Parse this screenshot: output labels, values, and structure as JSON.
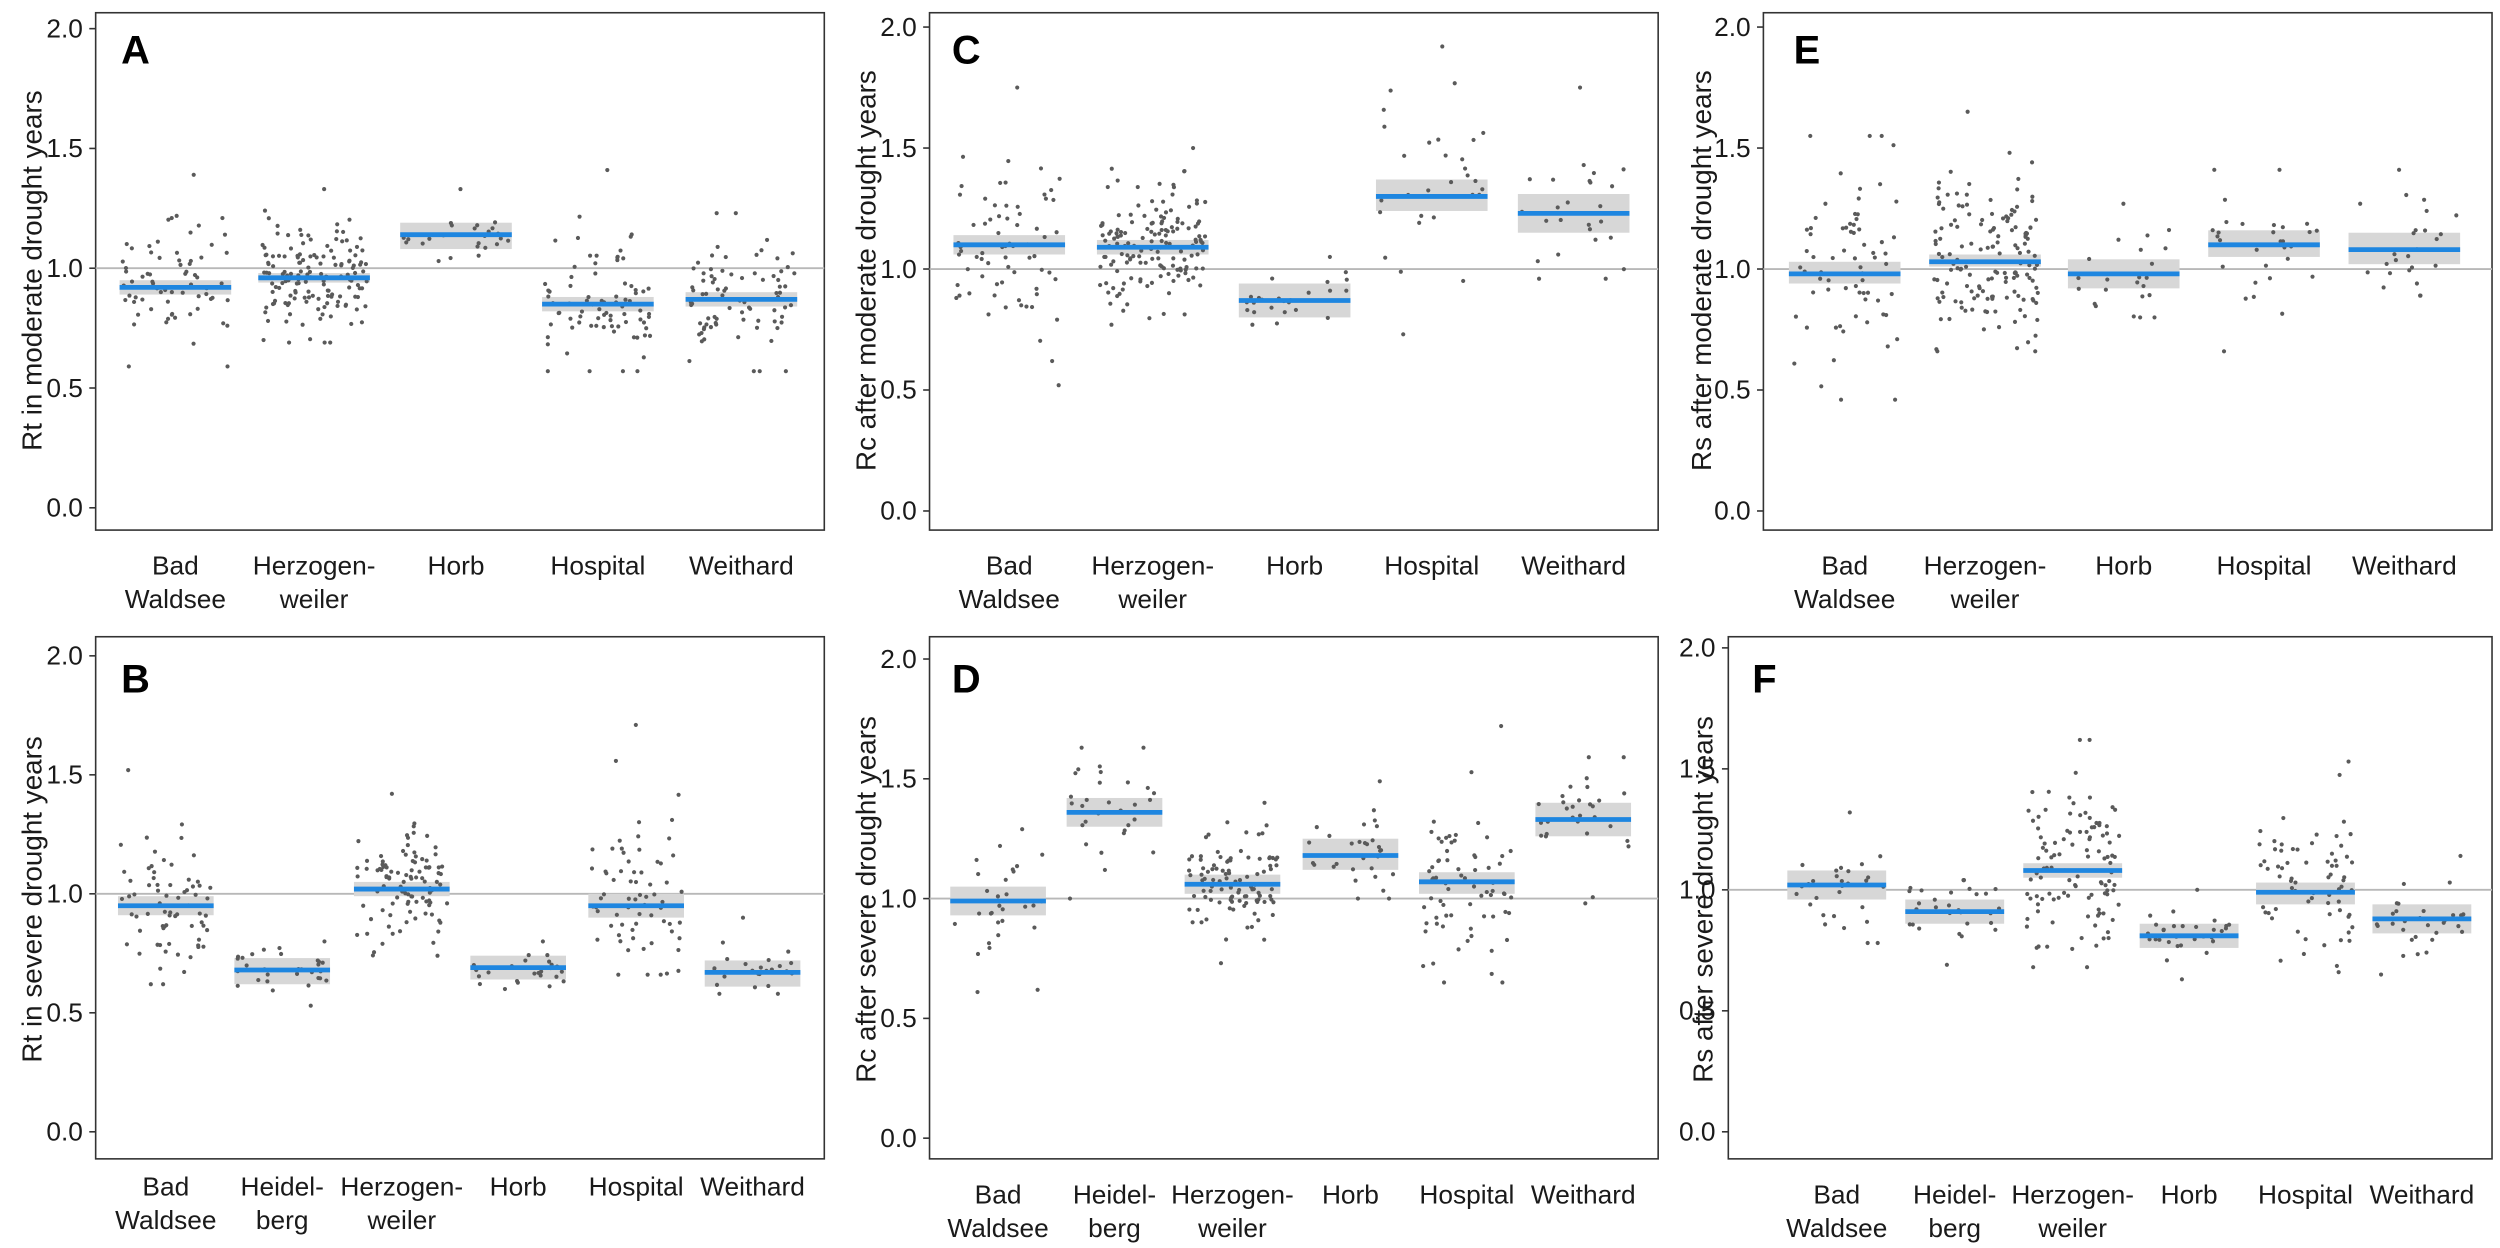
{
  "colors": {
    "mean_line": "#1e86e0",
    "ci_band": "#d7d7d7",
    "points": "#5a5a5a",
    "reference_line": "#b8b8b8",
    "frame": "#333333"
  },
  "chart_data": [
    {
      "panel": "A",
      "type": "scatter",
      "ylabel": "Rt in moderate drought years",
      "yticks": [
        "0.0",
        "0.5",
        "1.0",
        "1.5",
        "2.0"
      ],
      "ylim": [
        -0.09,
        2.07
      ],
      "reference_line": 1.0,
      "groups": [
        {
          "label_lines": [
            "Bad",
            "Waldsee"
          ],
          "mean": 0.92,
          "ci": [
            0.89,
            0.95
          ],
          "range": [
            0.59,
            1.39
          ],
          "n": 70
        },
        {
          "label_lines": [
            "Herzogen-",
            "weiler"
          ],
          "mean": 0.96,
          "ci": [
            0.94,
            0.98
          ],
          "range": [
            0.69,
            1.33
          ],
          "n": 150
        },
        {
          "label_lines": [
            "Horb"
          ],
          "mean": 1.14,
          "ci": [
            1.08,
            1.19
          ],
          "range": [
            1.03,
            1.33
          ],
          "n": 25
        },
        {
          "label_lines": [
            "Hospital"
          ],
          "mean": 0.85,
          "ci": [
            0.82,
            0.88
          ],
          "range": [
            0.57,
            1.41
          ],
          "n": 80
        },
        {
          "label_lines": [
            "Weithard"
          ],
          "mean": 0.87,
          "ci": [
            0.84,
            0.9
          ],
          "range": [
            0.57,
            1.23
          ],
          "n": 80
        }
      ]
    },
    {
      "panel": "B",
      "type": "scatter",
      "ylabel": "Rt in severe drought years",
      "yticks": [
        "0.0",
        "0.5",
        "1.0",
        "1.5",
        "2.0"
      ],
      "ylim": [
        -0.09,
        2.07
      ],
      "reference_line": 1.0,
      "groups": [
        {
          "label_lines": [
            "Bad",
            "Waldsee"
          ],
          "mean": 0.95,
          "ci": [
            0.91,
            0.99
          ],
          "range": [
            0.62,
            1.52
          ],
          "n": 70
        },
        {
          "label_lines": [
            "Heidel-",
            "berg"
          ],
          "mean": 0.68,
          "ci": [
            0.62,
            0.73
          ],
          "range": [
            0.53,
            0.8
          ],
          "n": 30
        },
        {
          "label_lines": [
            "Herzogen-",
            "weiler"
          ],
          "mean": 1.02,
          "ci": [
            0.99,
            1.05
          ],
          "range": [
            0.74,
            1.42
          ],
          "n": 100
        },
        {
          "label_lines": [
            "Horb"
          ],
          "mean": 0.69,
          "ci": [
            0.64,
            0.74
          ],
          "range": [
            0.6,
            0.8
          ],
          "n": 25
        },
        {
          "label_lines": [
            "Hospital"
          ],
          "mean": 0.95,
          "ci": [
            0.9,
            1.0
          ],
          "range": [
            0.66,
            1.71
          ],
          "n": 70
        },
        {
          "label_lines": [
            "Weithard"
          ],
          "mean": 0.67,
          "ci": [
            0.61,
            0.72
          ],
          "range": [
            0.58,
            0.9
          ],
          "n": 25
        }
      ]
    },
    {
      "panel": "C",
      "type": "scatter",
      "ylabel": "Rc after moderate  drought years",
      "yticks": [
        "0.0",
        "0.5",
        "1.0",
        "1.5",
        "2.0"
      ],
      "ylim": [
        -0.09,
        2.07
      ],
      "reference_line": 1.0,
      "groups": [
        {
          "label_lines": [
            "Bad",
            "Waldsee"
          ],
          "mean": 1.1,
          "ci": [
            1.06,
            1.14
          ],
          "range": [
            0.52,
            1.75
          ],
          "n": 70
        },
        {
          "label_lines": [
            "Herzogen-",
            "weiler"
          ],
          "mean": 1.09,
          "ci": [
            1.06,
            1.12
          ],
          "range": [
            0.77,
            1.5
          ],
          "n": 150
        },
        {
          "label_lines": [
            "Horb"
          ],
          "mean": 0.87,
          "ci": [
            0.8,
            0.94
          ],
          "range": [
            0.77,
            1.05
          ],
          "n": 25
        },
        {
          "label_lines": [
            "Hospital"
          ],
          "mean": 1.3,
          "ci": [
            1.24,
            1.37
          ],
          "range": [
            0.73,
            1.92
          ],
          "n": 30
        },
        {
          "label_lines": [
            "Weithard"
          ],
          "mean": 1.23,
          "ci": [
            1.15,
            1.31
          ],
          "range": [
            0.96,
            1.75
          ],
          "n": 25
        }
      ]
    },
    {
      "panel": "D",
      "type": "scatter",
      "ylabel": "Rc after severe drought years",
      "yticks": [
        "0.0",
        "0.5",
        "1.0",
        "1.5",
        "2.0"
      ],
      "ylim": [
        -0.09,
        2.07
      ],
      "reference_line": 1.0,
      "groups": [
        {
          "label_lines": [
            "Bad",
            "Waldsee"
          ],
          "mean": 0.99,
          "ci": [
            0.93,
            1.05
          ],
          "range": [
            0.61,
            1.29
          ],
          "n": 30
        },
        {
          "label_lines": [
            "Heidel-",
            "berg"
          ],
          "mean": 1.36,
          "ci": [
            1.3,
            1.42
          ],
          "range": [
            1.0,
            1.63
          ],
          "n": 30
        },
        {
          "label_lines": [
            "Herzogen-",
            "weiler"
          ],
          "mean": 1.06,
          "ci": [
            1.02,
            1.1
          ],
          "range": [
            0.73,
            1.4
          ],
          "n": 100
        },
        {
          "label_lines": [
            "Horb"
          ],
          "mean": 1.18,
          "ci": [
            1.12,
            1.25
          ],
          "range": [
            1.0,
            1.49
          ],
          "n": 30
        },
        {
          "label_lines": [
            "Hospital"
          ],
          "mean": 1.07,
          "ci": [
            1.02,
            1.11
          ],
          "range": [
            0.65,
            1.72
          ],
          "n": 70
        },
        {
          "label_lines": [
            "Weithard"
          ],
          "mean": 1.33,
          "ci": [
            1.26,
            1.4
          ],
          "range": [
            0.98,
            1.59
          ],
          "n": 30
        }
      ]
    },
    {
      "panel": "E",
      "type": "scatter",
      "ylabel": "Rs after moderate drought years",
      "yticks": [
        "0.0",
        "0.5",
        "1.0",
        "1.5",
        "2.0"
      ],
      "ylim": [
        -0.09,
        2.07
      ],
      "reference_line": 1.0,
      "groups": [
        {
          "label_lines": [
            "Bad",
            "Waldsee"
          ],
          "mean": 0.98,
          "ci": [
            0.94,
            1.03
          ],
          "range": [
            0.46,
            1.55
          ],
          "n": 70
        },
        {
          "label_lines": [
            "Herzogen-",
            "weiler"
          ],
          "mean": 1.03,
          "ci": [
            1.01,
            1.06
          ],
          "range": [
            0.66,
            1.65
          ],
          "n": 150
        },
        {
          "label_lines": [
            "Horb"
          ],
          "mean": 0.98,
          "ci": [
            0.92,
            1.04
          ],
          "range": [
            0.8,
            1.27
          ],
          "n": 25
        },
        {
          "label_lines": [
            "Hospital"
          ],
          "mean": 1.1,
          "ci": [
            1.05,
            1.16
          ],
          "range": [
            0.66,
            1.41
          ],
          "n": 30
        },
        {
          "label_lines": [
            "Weithard"
          ],
          "mean": 1.08,
          "ci": [
            1.02,
            1.15
          ],
          "range": [
            0.89,
            1.41
          ],
          "n": 25
        }
      ]
    },
    {
      "panel": "F",
      "type": "scatter",
      "ylabel": "Rs after severe drought years",
      "yticks": [
        "0.0",
        "0.5",
        "1.0",
        "1.5",
        "2.0"
      ],
      "ylim": [
        -0.09,
        2.07
      ],
      "reference_line": 1.0,
      "groups": [
        {
          "label_lines": [
            "Bad",
            "Waldsee"
          ],
          "mean": 1.02,
          "ci": [
            0.96,
            1.08
          ],
          "range": [
            0.78,
            1.32
          ],
          "n": 30
        },
        {
          "label_lines": [
            "Heidel-",
            "berg"
          ],
          "mean": 0.91,
          "ci": [
            0.86,
            0.96
          ],
          "range": [
            0.69,
            1.04
          ],
          "n": 30
        },
        {
          "label_lines": [
            "Herzogen-",
            "weiler"
          ],
          "mean": 1.08,
          "ci": [
            1.05,
            1.11
          ],
          "range": [
            0.68,
            1.62
          ],
          "n": 110
        },
        {
          "label_lines": [
            "Horb"
          ],
          "mean": 0.81,
          "ci": [
            0.76,
            0.86
          ],
          "range": [
            0.63,
            1.0
          ],
          "n": 30
        },
        {
          "label_lines": [
            "Hospital"
          ],
          "mean": 0.99,
          "ci": [
            0.94,
            1.03
          ],
          "range": [
            0.66,
            1.53
          ],
          "n": 70
        },
        {
          "label_lines": [
            "Weithard"
          ],
          "mean": 0.88,
          "ci": [
            0.82,
            0.94
          ],
          "range": [
            0.65,
            1.14
          ],
          "n": 30
        }
      ]
    }
  ]
}
